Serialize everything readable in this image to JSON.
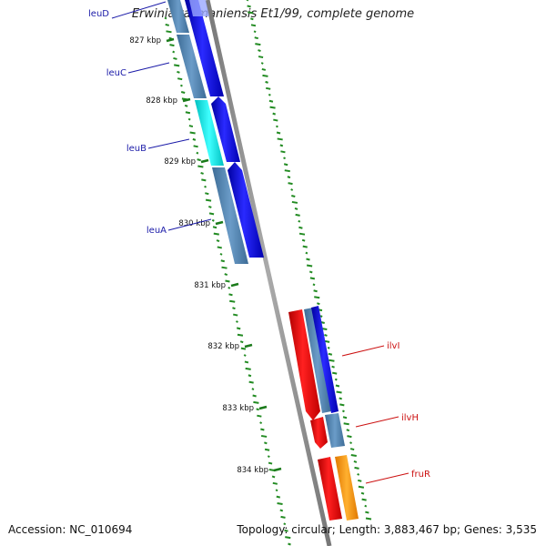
{
  "title": "Erwinia tasmaniensis Et1/99, complete genome",
  "footer": {
    "accession_label": "Accession:",
    "accession": "NC_010694",
    "topology_label": "Topology:",
    "topology": "circular",
    "length_label": "Length:",
    "length": "3,883,467 bp",
    "genes_label": "Genes:",
    "genes": "3,535"
  },
  "ticks": [
    "827 kbp",
    "828 kbp",
    "829 kbp",
    "830 kbp",
    "831 kbp",
    "832 kbp",
    "833 kbp",
    "834 kbp"
  ],
  "genes": [
    {
      "name": "leuD",
      "color": "#1a1aa8"
    },
    {
      "name": "leuC",
      "color": "#1a1aa8"
    },
    {
      "name": "leuB",
      "color": "#1a1aa8"
    },
    {
      "name": "leuA",
      "color": "#1a1aa8"
    },
    {
      "name": "ilvI",
      "color": "#cc1111"
    },
    {
      "name": "ilvH",
      "color": "#cc1111"
    },
    {
      "name": "fruR",
      "color": "#cc1111"
    }
  ],
  "colors": {
    "backbone": "#888888",
    "cds_forward": "#0000ee",
    "cds_reverse": "#ee0000",
    "gene_steel": "#4a7fb0",
    "gene_cyan": "#20e0e0",
    "gene_orange": "#ff9900",
    "tick": "#1a7a1a",
    "gc_dots": "#228b22"
  }
}
